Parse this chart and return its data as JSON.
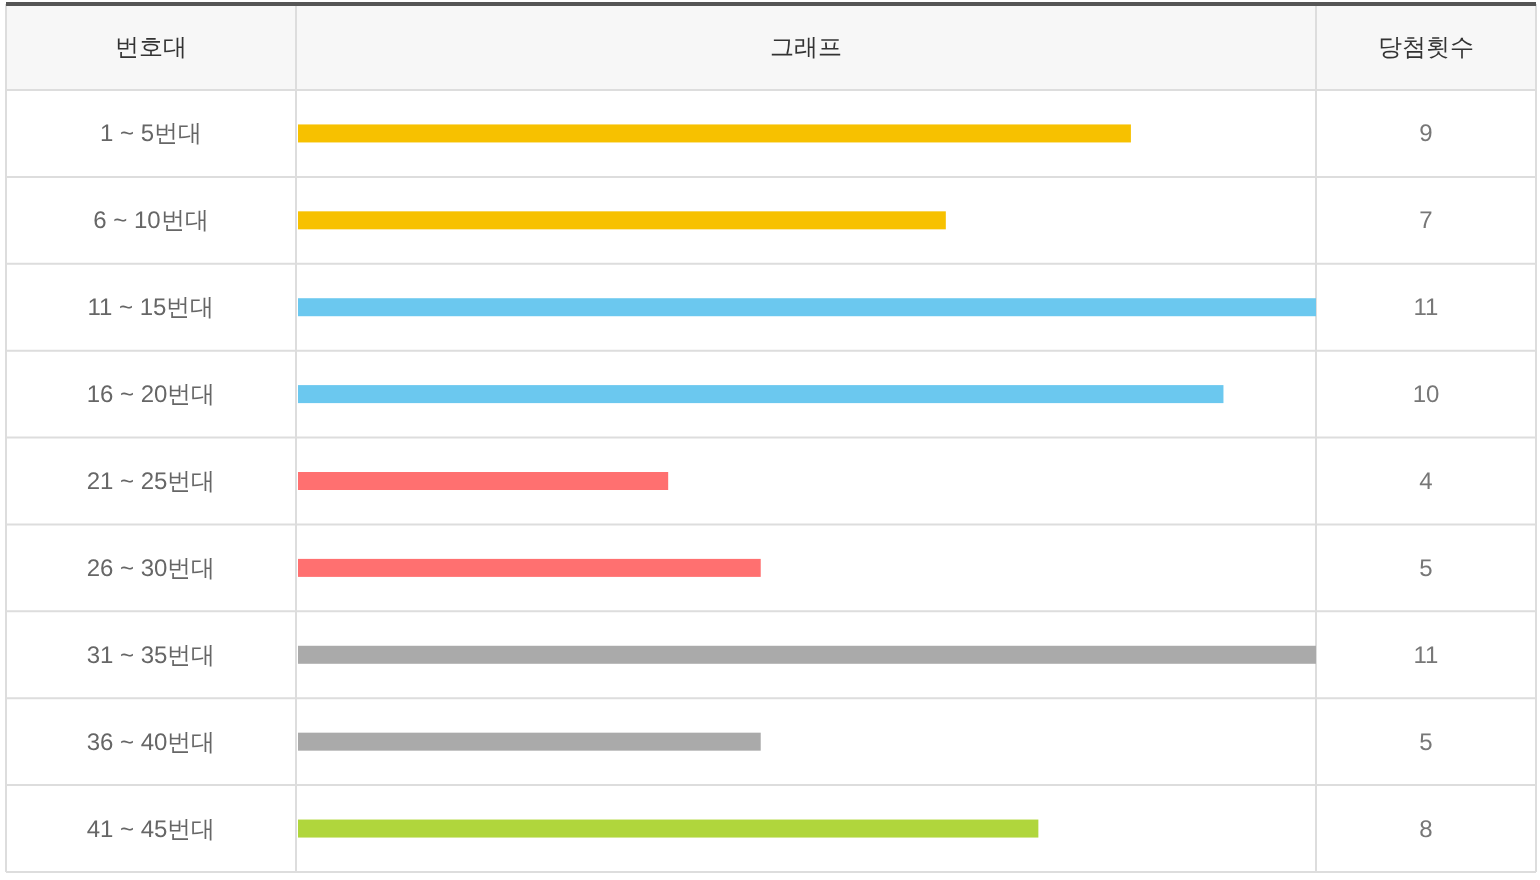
{
  "chart_data": {
    "type": "bar",
    "orientation": "horizontal",
    "title": "그래프",
    "ylabel": "번호대",
    "xlabel": "당첨횟수",
    "categories": [
      "1 ~ 5번대",
      "6 ~ 10번대",
      "11 ~ 15번대",
      "16 ~ 20번대",
      "21 ~ 25번대",
      "26 ~ 30번대",
      "31 ~ 35번대",
      "36 ~ 40번대",
      "41 ~ 45번대"
    ],
    "values": [
      9,
      7,
      11,
      10,
      4,
      5,
      11,
      5,
      8
    ],
    "colors": [
      "#f7c100",
      "#f7c100",
      "#6bc8ef",
      "#6bc8ef",
      "#ff7070",
      "#ff7070",
      "#aaaaaa",
      "#aaaaaa",
      "#b0d63c"
    ],
    "data_labels": true,
    "tick_labels": "y"
  }
}
